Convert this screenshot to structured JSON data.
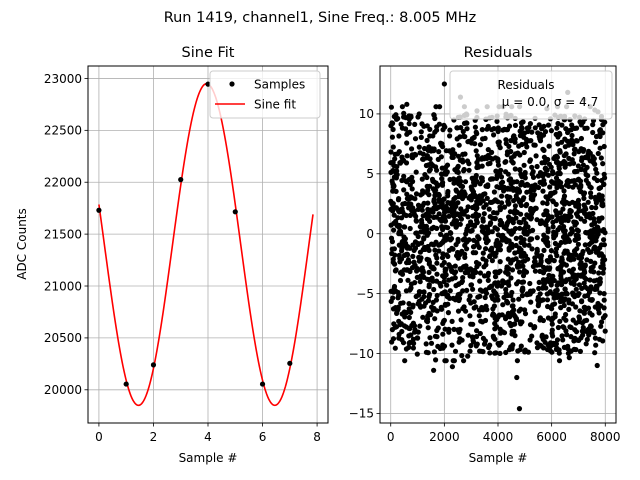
{
  "figure": {
    "suptitle": "Run 1419, channel1, Sine Freq.: 8.005 MHz"
  },
  "chart_data": [
    {
      "type": "line",
      "title": "Sine Fit",
      "xlabel": "Sample #",
      "ylabel": "ADC Counts",
      "xlim": [
        -0.4,
        8.4
      ],
      "ylim": [
        19680,
        23120
      ],
      "xticks": [
        0,
        2,
        4,
        6,
        8
      ],
      "yticks": [
        20000,
        20500,
        21000,
        21500,
        22000,
        22500,
        23000
      ],
      "grid": true,
      "legend": {
        "placement": "top-right",
        "entries": [
          "Samples",
          "Sine fit"
        ]
      },
      "series": [
        {
          "name": "Samples",
          "kind": "scatter",
          "color": "#000000",
          "x": [
            0,
            1,
            2,
            3,
            4,
            5,
            6,
            7
          ],
          "y": [
            21730,
            20055,
            20240,
            22025,
            22945,
            21715,
            20055,
            20255
          ]
        },
        {
          "name": "Sine fit",
          "kind": "line",
          "color": "#ff0000",
          "model": {
            "offset": 21400,
            "amplitude": 1550,
            "period_samples": 5.0,
            "phase_sample": 1.45,
            "x_range": [
              0,
              7.85
            ]
          }
        }
      ]
    },
    {
      "type": "scatter",
      "title": "Residuals",
      "xlabel": "Sample #",
      "ylabel": "",
      "xlim": [
        -400,
        8400
      ],
      "ylim": [
        -15.8,
        14.0
      ],
      "xticks": [
        0,
        2000,
        4000,
        6000,
        8000
      ],
      "yticks": [
        -15,
        -10,
        -5,
        0,
        5,
        10
      ],
      "grid": true,
      "legend": {
        "placement": "top-right",
        "entries": [
          "Residuals",
          "μ = 0.0, σ = 4.7"
        ]
      },
      "stats": {
        "mean": 0.0,
        "sigma": 4.7,
        "n_points": 8000
      },
      "series": [
        {
          "name": "Residuals",
          "color": "#000000",
          "dense_range": {
            "x": [
              0,
              8000
            ],
            "y": [
              -10,
              10
            ]
          },
          "outliers": [
            {
              "x": 2000,
              "y": 12.5
            },
            {
              "x": 6600,
              "y": 11.8
            },
            {
              "x": 2600,
              "y": 11.4
            },
            {
              "x": 7200,
              "y": 11.2
            },
            {
              "x": 4800,
              "y": -14.6
            },
            {
              "x": 4700,
              "y": -12.0
            },
            {
              "x": 1600,
              "y": -11.4
            },
            {
              "x": 2300,
              "y": -11.1
            },
            {
              "x": 600,
              "y": 10.8
            },
            {
              "x": 7700,
              "y": -11.0
            }
          ]
        }
      ]
    }
  ]
}
